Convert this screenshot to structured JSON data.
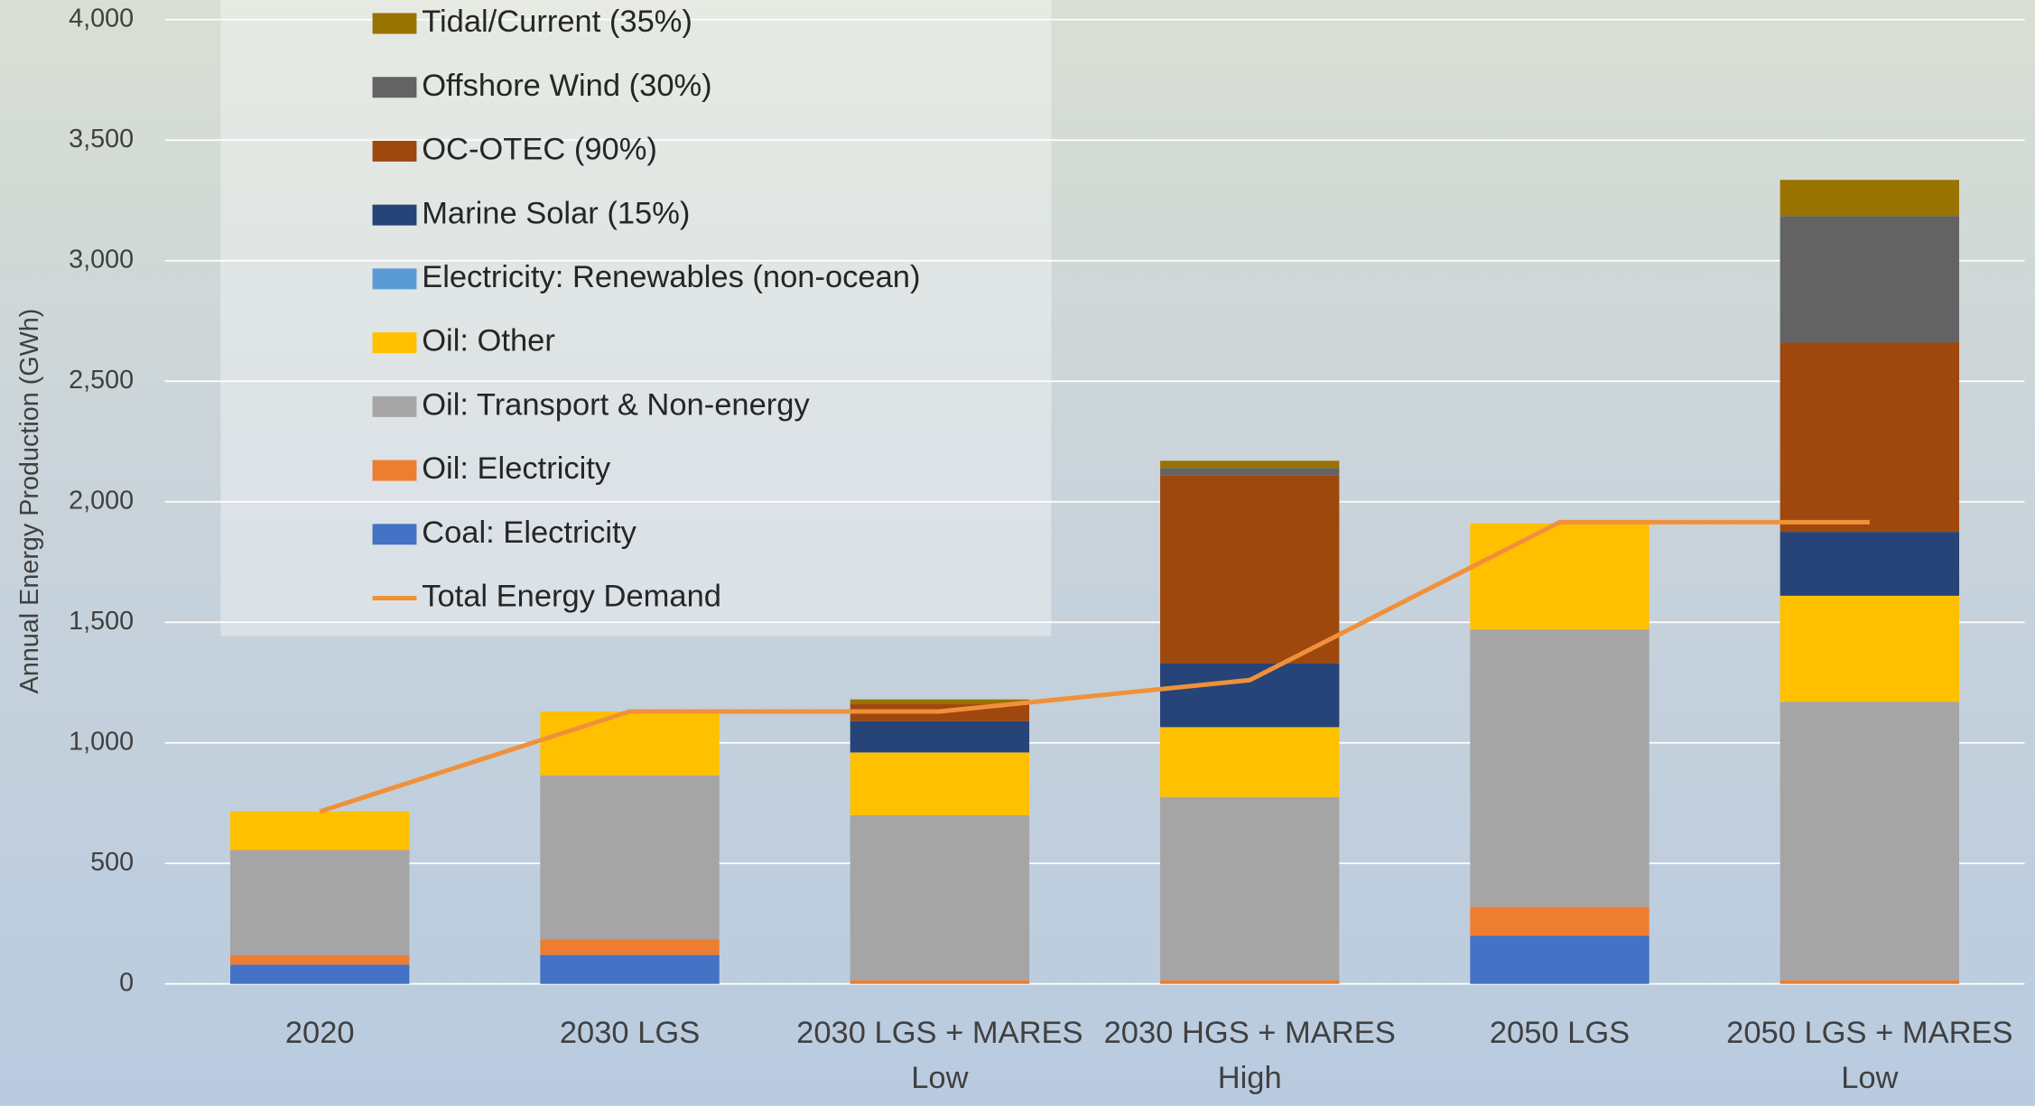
{
  "chart_data": {
    "type": "bar",
    "stacked": true,
    "y_label": "Annual Energy Production (GWh)",
    "categories": [
      "2020",
      "2030 LGS",
      "2030 LGS + MARES\nLow",
      "2030 HGS + MARES\nHigh",
      "2050 LGS",
      "2050 LGS + MARES\nLow"
    ],
    "series": [
      {
        "name": "Coal: Electricity",
        "color": "#4472c4",
        "values": [
          80,
          120,
          0,
          0,
          200,
          0
        ]
      },
      {
        "name": "Oil: Electricity",
        "color": "#ed7d31",
        "values": [
          40,
          65,
          15,
          15,
          120,
          15
        ]
      },
      {
        "name": "Oil: Transport & Non-energy",
        "color": "#a5a5a5",
        "values": [
          435,
          680,
          685,
          760,
          1150,
          1155
        ]
      },
      {
        "name": "Oil: Other",
        "color": "#ffc000",
        "values": [
          160,
          265,
          260,
          290,
          440,
          440
        ]
      },
      {
        "name": "Electricity: Renewables (non-ocean)",
        "color": "#5b9bd5",
        "values": [
          0,
          0,
          0,
          0,
          0,
          0
        ]
      },
      {
        "name": "Marine Solar (15%)",
        "color": "#264478",
        "values": [
          0,
          0,
          130,
          265,
          0,
          265
        ]
      },
      {
        "name": "OC-OTEC (90%)",
        "color": "#9e480e",
        "values": [
          0,
          0,
          70,
          780,
          0,
          785
        ]
      },
      {
        "name": "Offshore Wind (30%)",
        "color": "#636363",
        "values": [
          0,
          0,
          0,
          30,
          0,
          525
        ]
      },
      {
        "name": "Tidal/Current (35%)",
        "color": "#997300",
        "values": [
          0,
          0,
          20,
          30,
          0,
          150
        ]
      },
      {
        "name": "Total Energy Demand",
        "type": "line",
        "color": "#f0913a",
        "values": [
          715,
          1130,
          1130,
          1260,
          1915,
          1915
        ]
      }
    ],
    "ylim": [
      0,
      4000
    ],
    "yticks": [
      0,
      500,
      {
        "value": 1000,
        "label": "1,000"
      },
      {
        "value": 1500,
        "label": "1,500"
      },
      {
        "value": 2000,
        "label": "2,000"
      },
      {
        "value": 2500,
        "label": "2,500"
      },
      {
        "value": 3000,
        "label": "3,000"
      },
      {
        "value": 3500,
        "label": "3,500"
      },
      {
        "value": 4000,
        "label": "4,000"
      }
    ],
    "grid": true,
    "legend": "top-left"
  }
}
